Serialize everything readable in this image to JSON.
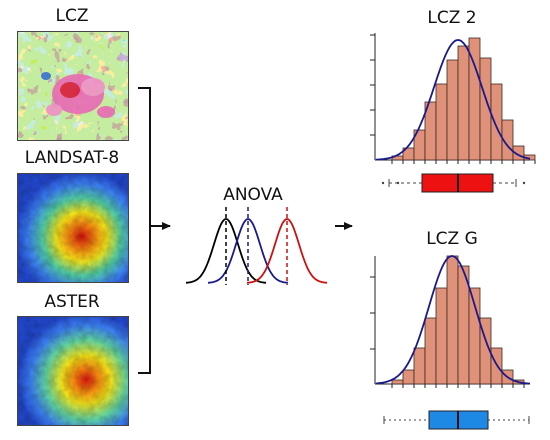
{
  "inputs": [
    {
      "label": "LCZ",
      "kind": "lcz"
    },
    {
      "label": "LANDSAT-8",
      "kind": "thermal"
    },
    {
      "label": "ASTER",
      "kind": "thermal"
    }
  ],
  "method": {
    "label": "ANOVA"
  },
  "outputs": [
    {
      "label": "LCZ 2",
      "box_color": "#ee1111"
    },
    {
      "label": "LCZ G",
      "box_color": "#1e88e5"
    }
  ],
  "colors": {
    "histogram_fill": "#e0917a",
    "fit_curve": "#1a1a8c",
    "anova_curves": [
      "#000000",
      "#1a1a8c",
      "#cc1111"
    ]
  },
  "icons": [
    "arrow-right-icon",
    "bracket-icon"
  ]
}
